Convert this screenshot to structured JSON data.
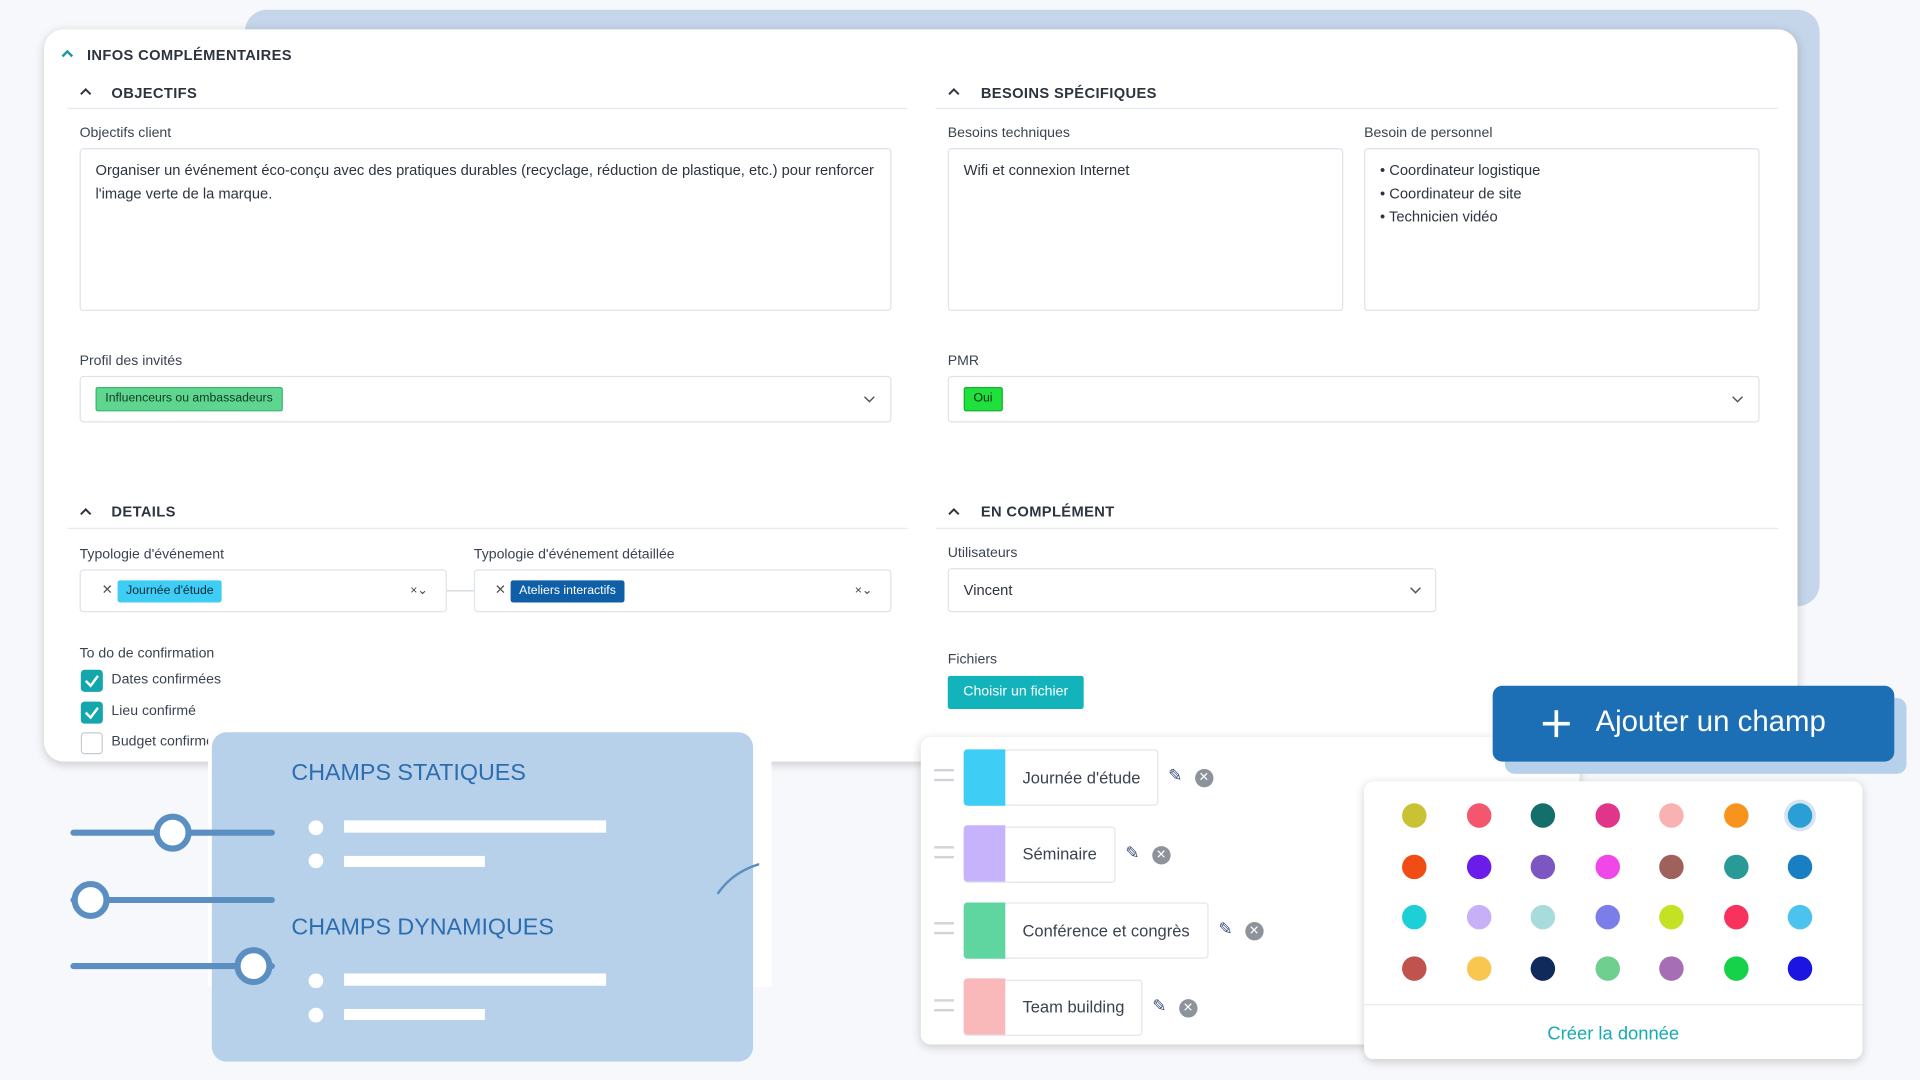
{
  "header": {
    "title": "INFOS COMPLÉMENTAIRES"
  },
  "objectifs": {
    "title": "OBJECTIFS",
    "client_label": "Objectifs client",
    "client_text": "Organiser un événement éco-conçu avec des pratiques durables (recyclage, réduction de plastique, etc.) pour renforcer l'image verte de la marque.",
    "profil_label": "Profil des invités",
    "profil_tag": "Influenceurs ou ambassadeurs"
  },
  "besoins": {
    "title": "BESOINS SPÉCIFIQUES",
    "tech_label": "Besoins techniques",
    "tech_text": "Wifi et connexion Internet",
    "personnel_label": "Besoin de personnel",
    "personnel_items": [
      "Coordinateur logistique",
      "Coordinateur de site",
      "Technicien vidéo"
    ],
    "pmr_label": "PMR",
    "pmr_tag": "Oui"
  },
  "details": {
    "title": "DETAILS",
    "typologie_label": "Typologie d'événement",
    "typologie_tag": "Journée d'étude",
    "detail_label": "Typologie d'événement détaillée",
    "detail_tag": "Ateliers interactifs",
    "todo_label": "To do de confirmation",
    "todo": [
      {
        "label": "Dates confirmées",
        "checked": true
      },
      {
        "label": "Lieu confirmé",
        "checked": true
      },
      {
        "label": "Budget confirmé",
        "checked": false
      }
    ]
  },
  "complement": {
    "title": "EN COMPLÉMENT",
    "users_label": "Utilisateurs",
    "users_value": "Vincent",
    "files_label": "Fichiers",
    "files_button": "Choisir un fichier"
  },
  "promo": {
    "static": "CHAMPS STATIQUES",
    "dynamic": "CHAMPS DYNAMIQUES"
  },
  "values_list": [
    {
      "label": "Journée d'étude",
      "color": "#3dcdf5"
    },
    {
      "label": "Séminaire",
      "color": "#c6b3fb"
    },
    {
      "label": "Conférence et congrès",
      "color": "#5fd6a0"
    },
    {
      "label": "Team building",
      "color": "#f9b9bb"
    }
  ],
  "add_button": "Ajouter un champ",
  "palette": {
    "colors": [
      "#c9c234",
      "#f4566e",
      "#146e6c",
      "#e0358b",
      "#f9b2b2",
      "#f7941d",
      "#2a9fd6",
      "#f24c15",
      "#6a1de8",
      "#7c57c2",
      "#f048e8",
      "#a0615d",
      "#2a9a96",
      "#1a7fc2",
      "#1dcfd6",
      "#c8b0f8",
      "#a8dcdc",
      "#7b7ee8",
      "#c5e124",
      "#f7325d",
      "#4cc3ee",
      "#c0534d",
      "#f9c74f",
      "#112a5c",
      "#6fcf8f",
      "#a66fb5",
      "#16d24a",
      "#1c14e0"
    ],
    "create": "Créer la donnée"
  }
}
